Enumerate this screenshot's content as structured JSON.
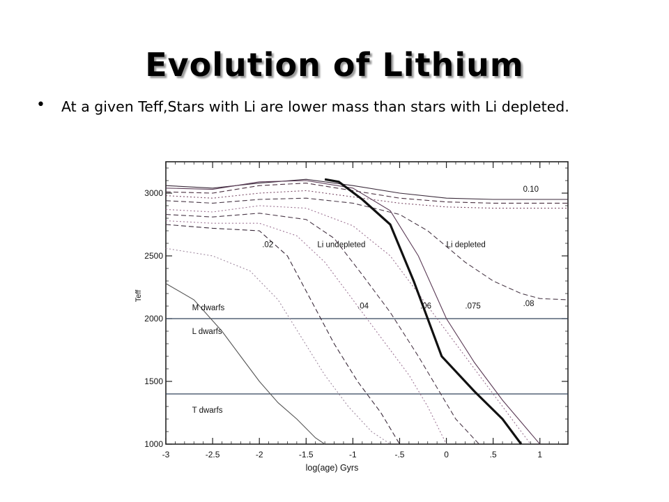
{
  "slide": {
    "title": "Evolution of Lithium",
    "bullet": "At a given Teff,Stars with Li are lower mass than stars with Li depleted."
  },
  "chart_data": {
    "type": "line",
    "xlabel": "log(age) Gyrs",
    "ylabel": "Teff",
    "xlim": [
      -3,
      1.3
    ],
    "ylim": [
      1000,
      3250
    ],
    "xticks": [
      -3,
      -2.5,
      -2,
      -1.5,
      -1,
      -0.5,
      0,
      0.5,
      1
    ],
    "xtick_labels": [
      "-3",
      "-2.5",
      "-2",
      "-1.5",
      "-1",
      "-.5",
      "0",
      ".5",
      "1"
    ],
    "yticks": [
      1000,
      1500,
      2000,
      2500,
      3000
    ],
    "ytick_labels": [
      "1000",
      "1500",
      "2000",
      "2500",
      "3000"
    ],
    "boundaries": [
      {
        "y": 2000,
        "above": "M dwarfs",
        "below": "L dwarfs"
      },
      {
        "y": 1400,
        "below": "T dwarfs"
      }
    ],
    "region_labels": [
      "Li undepleted",
      "Li depleted"
    ],
    "mass_labels": [
      {
        "text": "0.10",
        "x": 0.82,
        "y": 3010
      },
      {
        "text": ".08",
        "x": 0.82,
        "y": 2100
      },
      {
        "text": ".075",
        "x": 0.2,
        "y": 2080
      },
      {
        "text": ".06",
        "x": -0.28,
        "y": 2080
      },
      {
        "text": ".04",
        "x": -0.95,
        "y": 2080
      },
      {
        "text": ".02",
        "x": -1.97,
        "y": 2570
      }
    ],
    "lithium_boundary": {
      "x": [
        -1.3,
        -1.15,
        -0.9,
        -0.6,
        -0.35,
        -0.05,
        0.3,
        0.6,
        0.8
      ],
      "y": [
        3110,
        3090,
        2950,
        2750,
        2300,
        1700,
        1420,
        1200,
        1000
      ]
    },
    "series": [
      {
        "style": "solid",
        "x": [
          -3,
          -2.5,
          -2,
          -1.5,
          -1,
          -0.5,
          0,
          0.5,
          1,
          1.3
        ],
        "y": [
          3060,
          3040,
          3080,
          3110,
          3060,
          3000,
          2960,
          2950,
          2950,
          2950
        ]
      },
      {
        "style": "dashed",
        "x": [
          -3,
          -2.5,
          -2,
          -1.5,
          -1,
          -0.5,
          0,
          0.5,
          1,
          1.3
        ],
        "y": [
          3010,
          3000,
          3060,
          3080,
          3020,
          2960,
          2930,
          2920,
          2920,
          2920
        ]
      },
      {
        "style": "dotted",
        "x": [
          -3,
          -2.5,
          -2,
          -1.5,
          -1,
          -0.5,
          0,
          0.5,
          1,
          1.3
        ],
        "y": [
          2980,
          2960,
          3000,
          3020,
          2970,
          2920,
          2890,
          2880,
          2880,
          2880
        ]
      },
      {
        "style": "dashed",
        "x": [
          -3,
          -2.5,
          -2,
          -1.5,
          -1,
          -0.5,
          -0.2,
          0.2,
          0.5,
          0.8,
          1.0,
          1.3
        ],
        "y": [
          2940,
          2920,
          2950,
          2960,
          2920,
          2830,
          2700,
          2450,
          2300,
          2200,
          2160,
          2150
        ]
      },
      {
        "style": "solid",
        "x": [
          -3,
          -2.5,
          -2,
          -1.5,
          -1,
          -0.6,
          -0.3,
          0,
          0.3,
          0.6,
          1.0
        ],
        "y": [
          3040,
          3030,
          3090,
          3100,
          3040,
          2860,
          2500,
          2000,
          1650,
          1350,
          1000
        ]
      },
      {
        "style": "dotted",
        "x": [
          -3,
          -2.5,
          -2,
          -1.5,
          -1,
          -0.6,
          -0.3,
          0,
          0.3,
          0.6,
          0.9
        ],
        "y": [
          2870,
          2850,
          2900,
          2880,
          2740,
          2500,
          2200,
          1900,
          1600,
          1300,
          1000
        ]
      },
      {
        "style": "dashed",
        "x": [
          -3,
          -2.5,
          -2,
          -1.5,
          -1.2,
          -0.9,
          -0.6,
          -0.3,
          -0.1,
          0.1,
          0.35
        ],
        "y": [
          2830,
          2810,
          2840,
          2790,
          2640,
          2350,
          2050,
          1700,
          1450,
          1200,
          1000
        ]
      },
      {
        "style": "dotted",
        "x": [
          -3,
          -2.5,
          -2,
          -1.6,
          -1.3,
          -1,
          -0.7,
          -0.4,
          -0.2,
          0.0
        ],
        "y": [
          2780,
          2760,
          2760,
          2660,
          2450,
          2150,
          1850,
          1550,
          1300,
          1000
        ]
      },
      {
        "style": "dashed",
        "x": [
          -3,
          -2.5,
          -2,
          -1.7,
          -1.45,
          -1.2,
          -0.95,
          -0.7,
          -0.5
        ],
        "y": [
          2750,
          2720,
          2700,
          2500,
          2150,
          1800,
          1500,
          1250,
          1000
        ]
      },
      {
        "style": "dotted",
        "x": [
          -3,
          -2.5,
          -2.1,
          -1.8,
          -1.55,
          -1.3,
          -1.05,
          -0.8,
          -0.6
        ],
        "y": [
          2560,
          2500,
          2380,
          2150,
          1850,
          1550,
          1300,
          1100,
          1000
        ]
      },
      {
        "style": "solid",
        "x": [
          -3,
          -2.7,
          -2.4,
          -2.2,
          -2,
          -1.8,
          -1.6,
          -1.4,
          -1.3
        ],
        "y": [
          2280,
          2150,
          1900,
          1700,
          1500,
          1330,
          1200,
          1050,
          1000
        ]
      }
    ]
  }
}
